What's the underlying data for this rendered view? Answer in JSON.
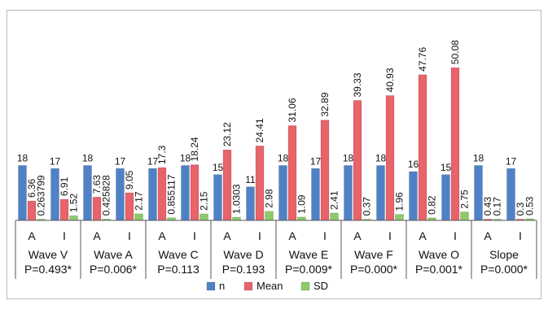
{
  "chart_data": {
    "type": "bar",
    "categories": [
      {
        "group": "Wave V",
        "p": "P=0.493*",
        "sub": "A"
      },
      {
        "group": "Wave V",
        "p": "P=0.493*",
        "sub": "I"
      },
      {
        "group": "Wave A",
        "p": "P=0.006*",
        "sub": "A"
      },
      {
        "group": "Wave A",
        "p": "P=0.006*",
        "sub": "I"
      },
      {
        "group": "Wave C",
        "p": "P=0.113",
        "sub": "A"
      },
      {
        "group": "Wave C",
        "p": "P=0.113",
        "sub": "I"
      },
      {
        "group": "Wave D",
        "p": "P=0.193",
        "sub": "A"
      },
      {
        "group": "Wave D",
        "p": "P=0.193",
        "sub": "I"
      },
      {
        "group": "Wave E",
        "p": "P=0.009*",
        "sub": "A"
      },
      {
        "group": "Wave E",
        "p": "P=0.009*",
        "sub": "I"
      },
      {
        "group": "Wave F",
        "p": "P=0.000*",
        "sub": "A"
      },
      {
        "group": "Wave F",
        "p": "P=0.000*",
        "sub": "I"
      },
      {
        "group": "Wave O",
        "p": "P=0.001*",
        "sub": "A"
      },
      {
        "group": "Wave O",
        "p": "P=0.001*",
        "sub": "I"
      },
      {
        "group": "Slope",
        "p": "P=0.000*",
        "sub": "A"
      },
      {
        "group": "Slope",
        "p": "P=0.000*",
        "sub": "I"
      }
    ],
    "series": [
      {
        "name": "n",
        "color": "#4f81c7",
        "values": [
          18,
          17,
          18,
          17,
          17,
          18,
          15,
          11,
          18,
          17,
          18,
          18,
          16,
          15,
          18,
          17
        ],
        "labels": [
          "18",
          "17",
          "18",
          "17",
          "17",
          "18",
          "15",
          "11",
          "18",
          "17",
          "18",
          "18",
          "16",
          "15",
          "18",
          "17"
        ]
      },
      {
        "name": "Mean",
        "color": "#e8636a",
        "values": [
          6.36,
          6.91,
          7.63,
          9.05,
          17.3,
          18.24,
          23.12,
          24.41,
          31.06,
          32.89,
          39.33,
          40.93,
          47.76,
          50.08,
          0.43,
          0.3
        ],
        "labels": [
          "6.36",
          "6.91",
          "7.63",
          "9.05",
          "17.3",
          "18.24",
          "23.12",
          "24.41",
          "31.06",
          "32.89",
          "39.33",
          "40.93",
          "47.76",
          "50.08",
          "0.43",
          "0.3"
        ]
      },
      {
        "name": "SD",
        "color": "#8dc96b",
        "values": [
          0.263799,
          1.52,
          0.425828,
          2.17,
          0.855117,
          2.15,
          1.0303,
          2.98,
          1.09,
          2.41,
          0.37,
          1.96,
          0.82,
          2.75,
          0.17,
          0.53
        ],
        "labels": [
          "0.263799",
          "1.52",
          "0.425828",
          "2.17",
          "0.855117",
          "2.15",
          "1.0303",
          "2.98",
          "1.09",
          "2.41",
          "0.37",
          "1.96",
          "0.82",
          "2.75",
          "0.17",
          "0.53"
        ]
      }
    ],
    "ylim": [
      0,
      52
    ],
    "grid": false,
    "legend_position": "bottom"
  }
}
